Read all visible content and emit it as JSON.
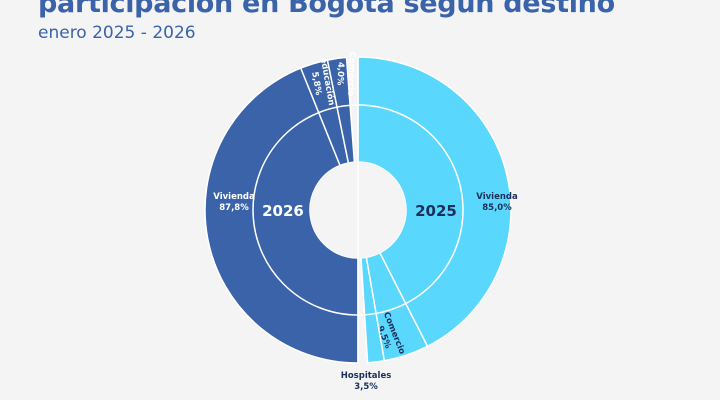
{
  "header": {
    "title_line1": "participación en Bogotá según destino",
    "subtitle": "enero 2025 - 2026"
  },
  "chart_data": {
    "type": "donut",
    "rings": [
      {
        "name": "2026",
        "side": "left",
        "color": "#3a63aa",
        "slices": [
          {
            "label": "Vivienda",
            "value_text": "87,8%",
            "value": 87.8
          },
          {
            "label": "educación",
            "value_text": "5,8%",
            "value": 5.8
          },
          {
            "label": "Comercio",
            "value_text": "4,0%",
            "value": 4.0
          }
        ]
      },
      {
        "name": "2025",
        "side": "right",
        "color": "#5ad7fc",
        "slices": [
          {
            "label": "Vivienda",
            "value_text": "85,0%",
            "value": 85.0
          },
          {
            "label": "Comercio",
            "value_text": "9,5%",
            "value": 9.5
          },
          {
            "label": "Hospitales",
            "value_text": "3,5%",
            "value": 3.5
          }
        ]
      }
    ],
    "text_color_dark": "#1a2f5a",
    "text_color_light": "#ffffff"
  }
}
